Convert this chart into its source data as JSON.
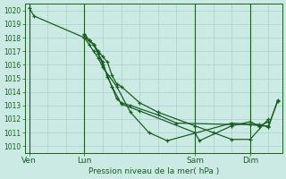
{
  "background_color": "#cceae4",
  "grid_color": "#aacfc9",
  "line_color": "#1a5e20",
  "title": "Pression niveau de la mer( hPa )",
  "ylim": [
    1009.5,
    1020.5
  ],
  "yticks": [
    1010,
    1011,
    1012,
    1013,
    1014,
    1015,
    1016,
    1017,
    1018,
    1019,
    1020
  ],
  "day_labels": [
    "Ven",
    "Lun",
    "Sam",
    "Dim"
  ],
  "day_positions": [
    0,
    24,
    72,
    96
  ],
  "xlim": [
    -2,
    110
  ],
  "vline_positions": [
    0,
    24,
    72,
    96
  ],
  "series": [
    {
      "x": [
        0,
        2,
        24,
        26,
        28,
        30,
        32,
        34,
        36,
        38,
        40,
        48,
        56,
        72,
        80,
        88,
        96,
        104
      ],
      "y": [
        1020.2,
        1019.6,
        1018.0,
        1017.8,
        1017.5,
        1017.0,
        1016.6,
        1016.2,
        1015.2,
        1014.6,
        1014.4,
        1013.2,
        1012.5,
        1011.5,
        1011.0,
        1010.5,
        1010.5,
        1012.0
      ]
    },
    {
      "x": [
        24,
        26,
        28,
        30,
        32,
        34,
        36,
        40,
        48,
        72,
        74,
        88,
        96,
        100,
        104
      ],
      "y": [
        1018.2,
        1017.8,
        1017.5,
        1016.8,
        1016.2,
        1015.1,
        1014.4,
        1013.1,
        1012.6,
        1011.0,
        1010.4,
        1011.5,
        1011.8,
        1011.5,
        1011.8
      ]
    },
    {
      "x": [
        24,
        26,
        28,
        30,
        32,
        34,
        38,
        40,
        44,
        56,
        64,
        88,
        96,
        100,
        104,
        108
      ],
      "y": [
        1018.3,
        1017.8,
        1017.5,
        1016.8,
        1016.0,
        1015.2,
        1013.5,
        1013.2,
        1013.0,
        1012.3,
        1011.7,
        1011.6,
        1011.6,
        1011.5,
        1011.5,
        1013.3
      ]
    },
    {
      "x": [
        24,
        26,
        28,
        30,
        32,
        38,
        44,
        52,
        60,
        88,
        96,
        100,
        104,
        108
      ],
      "y": [
        1018.0,
        1017.5,
        1017.0,
        1016.5,
        1015.8,
        1014.4,
        1012.5,
        1011.0,
        1010.4,
        1011.7,
        1011.6,
        1011.6,
        1011.4,
        1013.4
      ]
    }
  ]
}
